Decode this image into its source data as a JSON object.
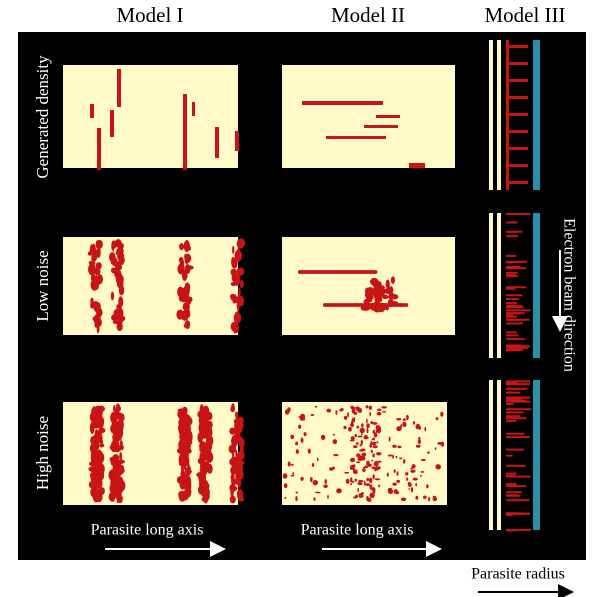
{
  "columns": [
    "Model I",
    "Model II",
    "Model III"
  ],
  "rows": [
    "Generated density",
    "Low noise",
    "High noise"
  ],
  "axis_labels": {
    "long_axis": [
      "Parasite long axis",
      "Parasite long axis"
    ],
    "beam": "Electron beam direction",
    "radius": "Parasite radius"
  }
}
